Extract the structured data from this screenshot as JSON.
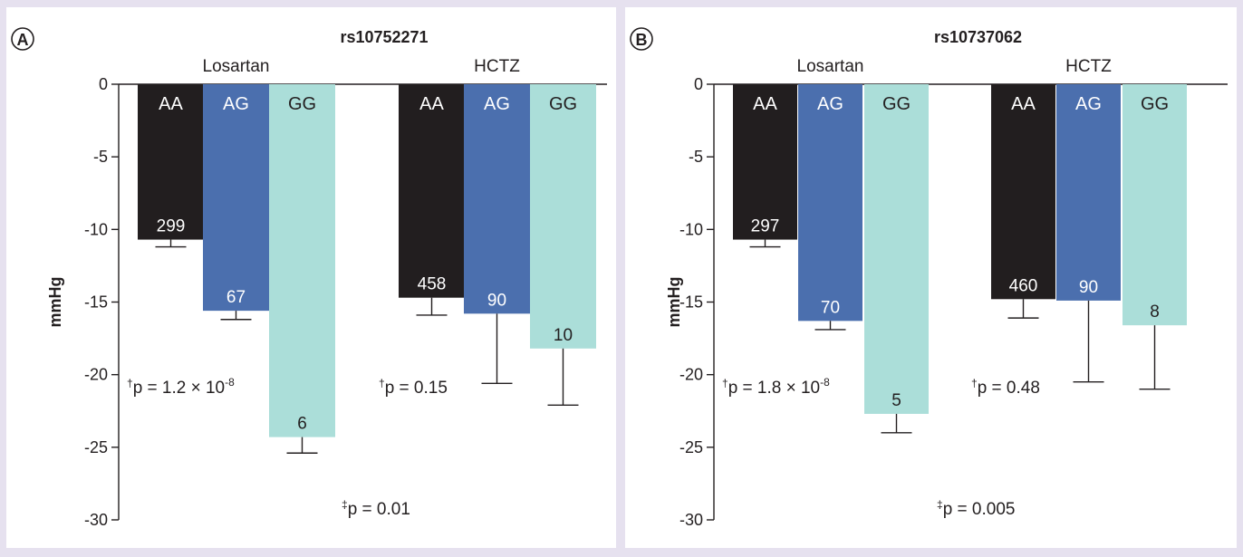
{
  "colors": {
    "background": "#e6e1ef",
    "plot_bg": "#ffffff",
    "AA": "#221e1f",
    "AG": "#4b6fae",
    "GG": "#abded9",
    "axis": "#231f20",
    "bar_label_dark": "#ffffff",
    "bar_label_light": "#231f20"
  },
  "chart_data": [
    {
      "type": "bar",
      "panel_label": "A",
      "title": "rs10752271",
      "ylabel": "mmHg",
      "ylim": [
        -30,
        0
      ],
      "yticks": [
        0,
        -5,
        -10,
        -15,
        -20,
        -25,
        -30
      ],
      "ytick_labels": [
        "0",
        "-5",
        "-10",
        "-15",
        "-20",
        "-25",
        "-30"
      ],
      "groups": [
        "Losartan",
        "HCTZ"
      ],
      "categories": [
        "AA",
        "AG",
        "GG"
      ],
      "series": [
        {
          "group": "Losartan",
          "values": [
            -10.7,
            -15.6,
            -24.3
          ],
          "error_low": [
            -11.2,
            -16.2,
            -25.4
          ],
          "n": [
            "299",
            "67",
            "6"
          ]
        },
        {
          "group": "HCTZ",
          "values": [
            -14.7,
            -15.8,
            -18.2
          ],
          "error_low": [
            -15.9,
            -20.6,
            -22.1
          ],
          "n": [
            "458",
            "90",
            "10"
          ]
        }
      ],
      "annotations": {
        "losartan_p": {
          "prefix": "†",
          "text": "p = 1.2 × 10",
          "exp": "-8"
        },
        "hctz_p": {
          "prefix": "†",
          "text": "p = 0.15",
          "exp": ""
        },
        "interaction_p": {
          "prefix": "‡",
          "text": "p = 0.01"
        }
      }
    },
    {
      "type": "bar",
      "panel_label": "B",
      "title": "rs10737062",
      "ylabel": "mmHg",
      "ylim": [
        -30,
        0
      ],
      "yticks": [
        0,
        -5,
        -10,
        -15,
        -20,
        -25,
        -30
      ],
      "ytick_labels": [
        "0",
        "-5",
        "-10",
        "-15",
        "-20",
        "-25",
        "-30"
      ],
      "groups": [
        "Losartan",
        "HCTZ"
      ],
      "categories": [
        "AA",
        "AG",
        "GG"
      ],
      "series": [
        {
          "group": "Losartan",
          "values": [
            -10.7,
            -16.3,
            -22.7
          ],
          "error_low": [
            -11.2,
            -16.9,
            -24.0
          ],
          "n": [
            "297",
            "70",
            "5"
          ]
        },
        {
          "group": "HCTZ",
          "values": [
            -14.8,
            -14.9,
            -16.6
          ],
          "error_low": [
            -16.1,
            -20.5,
            -21.0
          ],
          "n": [
            "460",
            "90",
            "8"
          ]
        }
      ],
      "annotations": {
        "losartan_p": {
          "prefix": "†",
          "text": "p = 1.8 × 10",
          "exp": "-8"
        },
        "hctz_p": {
          "prefix": "†",
          "text": "p = 0.48",
          "exp": ""
        },
        "interaction_p": {
          "prefix": "‡",
          "text": "p = 0.005"
        }
      }
    }
  ]
}
